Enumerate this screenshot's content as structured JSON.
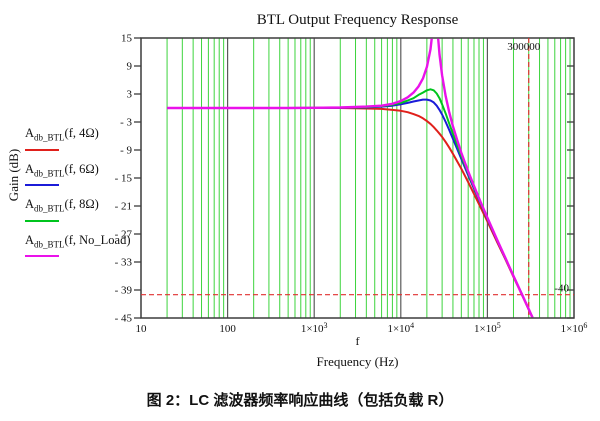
{
  "title": "BTL Output Frequency Response",
  "caption": "图 2：LC 滤波器频率响应曲线（包括负载 R）",
  "y_axis": {
    "label": "Gain (dB)",
    "ticks": [
      {
        "v": 15,
        "label": "15"
      },
      {
        "v": 9,
        "label": "9"
      },
      {
        "v": 3,
        "label": "3"
      },
      {
        "v": -3,
        "label": "- 3"
      },
      {
        "v": -9,
        "label": "- 9"
      },
      {
        "v": -15,
        "label": "- 15"
      },
      {
        "v": -21,
        "label": "- 21"
      },
      {
        "v": -27,
        "label": "- 27"
      },
      {
        "v": -33,
        "label": "- 33"
      },
      {
        "v": -39,
        "label": "- 39"
      },
      {
        "v": -45,
        "label": "- 45"
      }
    ]
  },
  "x_axis": {
    "var_label": "f",
    "label": "Frequency (Hz)",
    "ticks": [
      {
        "v": 10,
        "base": "10",
        "exp": null
      },
      {
        "v": 100,
        "base": "100",
        "exp": null
      },
      {
        "v": 1000,
        "base": "1×10",
        "exp": "3"
      },
      {
        "v": 10000,
        "base": "1×10",
        "exp": "4"
      },
      {
        "v": 100000,
        "base": "1×10",
        "exp": "5"
      },
      {
        "v": 1000000,
        "base": "1×10",
        "exp": "6"
      }
    ]
  },
  "legend": [
    {
      "id": "4ohm",
      "main": "A",
      "sub": "db_BTL",
      "args": "(f, 4Ω)",
      "color": "#e0201b"
    },
    {
      "id": "6ohm",
      "main": "A",
      "sub": "db_BTL",
      "args": "(f, 6Ω)",
      "color": "#1b1bd8"
    },
    {
      "id": "8ohm",
      "main": "A",
      "sub": "db_BTL",
      "args": "(f, 8Ω)",
      "color": "#00c41e"
    },
    {
      "id": "no-load",
      "main": "A",
      "sub": "db_BTL",
      "args": "(f, No_Load)",
      "color": "#ea12ea"
    }
  ],
  "chart_data": {
    "type": "line",
    "title": "BTL Output Frequency Response",
    "xlabel": "Frequency (Hz)",
    "ylabel": "Gain (dB)",
    "xscale": "log",
    "xlim": [
      10,
      1000000
    ],
    "ylim": [
      -45,
      15
    ],
    "y_tick_step": 6,
    "grid": {
      "vertical_minor_color": "#3dd43d",
      "vertical_decade_color": "#5a5a5a",
      "frame_color": "#3c3c3c",
      "horizontal": false
    },
    "vline": {
      "x": 300000,
      "label": "300000",
      "style": "dashed",
      "color": "#e03131"
    },
    "hline": {
      "y": -40,
      "label": "-40",
      "style": "dashed",
      "color": "#e03131"
    },
    "series": [
      {
        "name": "A_db_BTL(f, 4Ω)",
        "color": "#e0201b",
        "width": 2,
        "points": [
          [
            20,
            0
          ],
          [
            100,
            0
          ],
          [
            500,
            0
          ],
          [
            1000,
            0
          ],
          [
            2000,
            0
          ],
          [
            4000,
            -0.1
          ],
          [
            6000,
            -0.2
          ],
          [
            8000,
            -0.4
          ],
          [
            10000,
            -0.6
          ],
          [
            12000,
            -0.9
          ],
          [
            14000,
            -1.3
          ],
          [
            16000,
            -1.7
          ],
          [
            18000,
            -2.2
          ],
          [
            20000,
            -2.8
          ],
          [
            22000,
            -3.4
          ],
          [
            24000,
            -4.1
          ],
          [
            26000,
            -4.8
          ],
          [
            28000,
            -5.5
          ],
          [
            30000,
            -6.2
          ],
          [
            33000,
            -7.3
          ],
          [
            36000,
            -8.4
          ],
          [
            40000,
            -9.8
          ],
          [
            45000,
            -11.5
          ],
          [
            50000,
            -13
          ],
          [
            60000,
            -15.9
          ],
          [
            70000,
            -18.4
          ],
          [
            85000,
            -21.6
          ],
          [
            100000,
            -24.3
          ],
          [
            130000,
            -28.8
          ],
          [
            160000,
            -32.3
          ],
          [
            200000,
            -36.2
          ],
          [
            250000,
            -40
          ],
          [
            300000,
            -43.2
          ],
          [
            340000,
            -45.4
          ],
          [
            350000,
            -46
          ]
        ]
      },
      {
        "name": "A_db_BTL(f, 6Ω)",
        "color": "#1b1bd8",
        "width": 2,
        "points": [
          [
            20,
            0
          ],
          [
            100,
            0
          ],
          [
            500,
            0
          ],
          [
            1000,
            0
          ],
          [
            2000,
            0.05
          ],
          [
            4000,
            0.1
          ],
          [
            6000,
            0.3
          ],
          [
            8000,
            0.5
          ],
          [
            10000,
            0.8
          ],
          [
            12000,
            1.1
          ],
          [
            14000,
            1.4
          ],
          [
            16000,
            1.6
          ],
          [
            18000,
            1.8
          ],
          [
            20000,
            1.8
          ],
          [
            22000,
            1.6
          ],
          [
            24000,
            1.2
          ],
          [
            26000,
            0.5
          ],
          [
            28000,
            -0.4
          ],
          [
            30000,
            -1.4
          ],
          [
            33000,
            -3
          ],
          [
            36000,
            -4.6
          ],
          [
            40000,
            -6.6
          ],
          [
            45000,
            -8.9
          ],
          [
            50000,
            -10.9
          ],
          [
            60000,
            -14.4
          ],
          [
            70000,
            -17.3
          ],
          [
            85000,
            -20.8
          ],
          [
            100000,
            -23.8
          ],
          [
            130000,
            -28.5
          ],
          [
            160000,
            -32.1
          ],
          [
            200000,
            -36
          ],
          [
            250000,
            -39.9
          ],
          [
            300000,
            -43.1
          ],
          [
            340000,
            -45.3
          ],
          [
            350000,
            -45.9
          ]
        ]
      },
      {
        "name": "A_db_BTL(f, 8Ω)",
        "color": "#00c41e",
        "width": 2,
        "points": [
          [
            20,
            0
          ],
          [
            100,
            0
          ],
          [
            500,
            0
          ],
          [
            1000,
            0.05
          ],
          [
            2000,
            0.1
          ],
          [
            4000,
            0.2
          ],
          [
            6000,
            0.4
          ],
          [
            8000,
            0.7
          ],
          [
            10000,
            1.1
          ],
          [
            12000,
            1.6
          ],
          [
            14000,
            2.1
          ],
          [
            16000,
            2.8
          ],
          [
            18000,
            3.3
          ],
          [
            20000,
            3.8
          ],
          [
            22000,
            4
          ],
          [
            24000,
            3.8
          ],
          [
            26000,
            3.1
          ],
          [
            28000,
            2.1
          ],
          [
            30000,
            0.8
          ],
          [
            33000,
            -1.2
          ],
          [
            36000,
            -3.2
          ],
          [
            40000,
            -5.5
          ],
          [
            45000,
            -8.1
          ],
          [
            50000,
            -10.3
          ],
          [
            60000,
            -14
          ],
          [
            70000,
            -17
          ],
          [
            85000,
            -20.7
          ],
          [
            100000,
            -23.7
          ],
          [
            130000,
            -28.4
          ],
          [
            160000,
            -32.1
          ],
          [
            200000,
            -36
          ],
          [
            250000,
            -39.9
          ],
          [
            300000,
            -43.1
          ],
          [
            340000,
            -45.3
          ],
          [
            350000,
            -45.9
          ]
        ]
      },
      {
        "name": "A_db_BTL(f, No_Load)",
        "color": "#ea12ea",
        "width": 2.4,
        "points": [
          [
            20,
            0
          ],
          [
            100,
            0
          ],
          [
            500,
            0
          ],
          [
            1000,
            0.05
          ],
          [
            2000,
            0.1
          ],
          [
            4000,
            0.3
          ],
          [
            6000,
            0.5
          ],
          [
            8000,
            0.9
          ],
          [
            10000,
            1.5
          ],
          [
            12000,
            2.3
          ],
          [
            14000,
            3.3
          ],
          [
            16000,
            4.6
          ],
          [
            18000,
            6.3
          ],
          [
            20000,
            8.8
          ],
          [
            22000,
            12.6
          ],
          [
            23000,
            15.6
          ],
          [
            24000,
            19.9
          ],
          [
            25000,
            23.5
          ],
          [
            26000,
            19.4
          ],
          [
            27000,
            14.8
          ],
          [
            28000,
            11.5
          ],
          [
            30000,
            7
          ],
          [
            33000,
            2.5
          ],
          [
            36000,
            -0.7
          ],
          [
            40000,
            -3.9
          ],
          [
            45000,
            -7
          ],
          [
            50000,
            -9.6
          ],
          [
            60000,
            -13.6
          ],
          [
            70000,
            -16.7
          ],
          [
            85000,
            -20.5
          ],
          [
            100000,
            -23.5
          ],
          [
            130000,
            -28.3
          ],
          [
            160000,
            -32
          ],
          [
            200000,
            -36
          ],
          [
            250000,
            -39.9
          ],
          [
            300000,
            -43.1
          ],
          [
            340000,
            -45.3
          ],
          [
            350000,
            -45.9
          ]
        ]
      }
    ]
  }
}
